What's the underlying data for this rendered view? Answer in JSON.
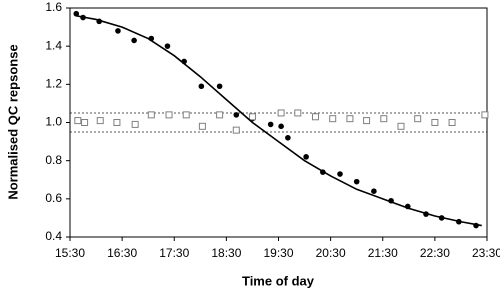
{
  "chart_data": {
    "type": "scatter",
    "xlabel": "Time of day",
    "ylabel": "Normalised QC repsonse",
    "xlim": [
      15.5,
      23.5
    ],
    "xticks": [
      {
        "value": 15.5,
        "label": "15:30"
      },
      {
        "value": 16.5,
        "label": "16:30"
      },
      {
        "value": 17.5,
        "label": "17:30"
      },
      {
        "value": 18.5,
        "label": "18:30"
      },
      {
        "value": 19.5,
        "label": "19:30"
      },
      {
        "value": 20.5,
        "label": "20:30"
      },
      {
        "value": 21.5,
        "label": "21:30"
      },
      {
        "value": 22.5,
        "label": "22:30"
      },
      {
        "value": 23.5,
        "label": "23:30"
      }
    ],
    "ylim": [
      0.4,
      1.6
    ],
    "yticks": [
      0.4,
      0.6,
      0.8,
      {
        "value": 1,
        "label": "1.0"
      },
      1.2,
      1.4,
      1.6
    ],
    "reference_lines": [
      1.05,
      0.95
    ],
    "series": [
      {
        "style": "filled-circle",
        "color": "#000000",
        "x": [
          15.62,
          15.75,
          16.06,
          16.42,
          16.73,
          17.06,
          17.37,
          17.69,
          18.02,
          18.37,
          18.69,
          19.0,
          19.35,
          19.55,
          19.68,
          20.03,
          20.35,
          20.68,
          21.0,
          21.33,
          21.66,
          21.98,
          22.33,
          22.63,
          22.96,
          23.29
        ],
        "values": [
          1.57,
          1.55,
          1.53,
          1.48,
          1.43,
          1.44,
          1.4,
          1.32,
          1.19,
          1.19,
          1.04,
          1.02,
          0.99,
          0.98,
          0.92,
          0.82,
          0.74,
          0.73,
          0.69,
          0.64,
          0.59,
          0.56,
          0.52,
          0.5,
          0.48,
          0.46
        ]
      },
      {
        "style": "open-square",
        "color": "#808080",
        "x": [
          15.65,
          15.78,
          16.08,
          16.4,
          16.75,
          17.06,
          17.4,
          17.73,
          18.04,
          18.37,
          18.69,
          19.0,
          19.55,
          19.87,
          20.21,
          20.54,
          20.87,
          21.19,
          21.52,
          21.85,
          22.17,
          22.5,
          22.83,
          23.46
        ],
        "values": [
          1.01,
          1.0,
          1.01,
          1.0,
          0.99,
          1.04,
          1.04,
          1.04,
          0.98,
          1.04,
          0.96,
          1.03,
          1.05,
          1.05,
          1.03,
          1.02,
          1.02,
          1.01,
          1.02,
          0.98,
          1.02,
          1.0,
          1.0,
          1.04
        ]
      },
      {
        "style": "line",
        "color": "#000000",
        "x": [
          15.6,
          16.0,
          16.5,
          17.0,
          17.5,
          18.0,
          18.5,
          19.0,
          19.5,
          20.0,
          20.5,
          21.0,
          21.5,
          22.0,
          22.5,
          23.0,
          23.4
        ],
        "values": [
          1.56,
          1.54,
          1.5,
          1.44,
          1.35,
          1.24,
          1.12,
          1.0,
          0.9,
          0.8,
          0.72,
          0.65,
          0.6,
          0.55,
          0.51,
          0.48,
          0.46
        ]
      }
    ]
  }
}
